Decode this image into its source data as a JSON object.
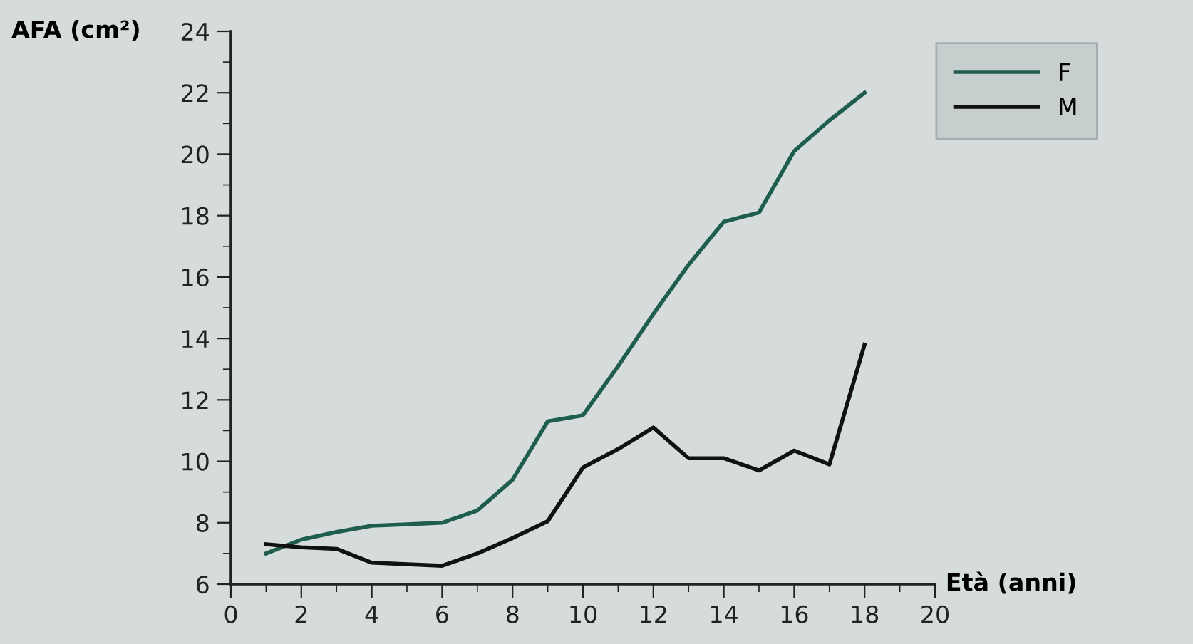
{
  "chart_data": {
    "type": "line",
    "xlabel": "Età (anni)",
    "ylabel": "AFA (cm²)",
    "x": [
      1,
      2,
      3,
      4,
      5,
      6,
      7,
      8,
      9,
      10,
      11,
      12,
      13,
      14,
      15,
      16,
      17,
      18
    ],
    "series": [
      {
        "name": "F",
        "color": "#1f5e4c",
        "values": [
          7.0,
          7.45,
          7.7,
          7.9,
          7.95,
          8.0,
          8.4,
          9.4,
          11.3,
          11.5,
          13.1,
          14.8,
          16.4,
          17.8,
          18.1,
          20.1,
          21.1,
          22.0
        ]
      },
      {
        "name": "M",
        "color": "#111111",
        "values": [
          7.3,
          7.2,
          7.15,
          6.7,
          6.65,
          6.6,
          7.0,
          7.5,
          8.05,
          9.8,
          10.4,
          11.1,
          10.1,
          10.1,
          9.7,
          10.35,
          9.9,
          13.8
        ]
      }
    ],
    "xlim": [
      0,
      20
    ],
    "xticks": [
      0,
      2,
      4,
      6,
      8,
      10,
      12,
      14,
      16,
      18,
      20
    ],
    "ylim": [
      6,
      24
    ],
    "yticks": [
      6,
      8,
      10,
      12,
      14,
      16,
      18,
      20,
      22,
      24
    ],
    "grid": false,
    "legend": "top right",
    "marker": "none",
    "line_style": "solid"
  }
}
